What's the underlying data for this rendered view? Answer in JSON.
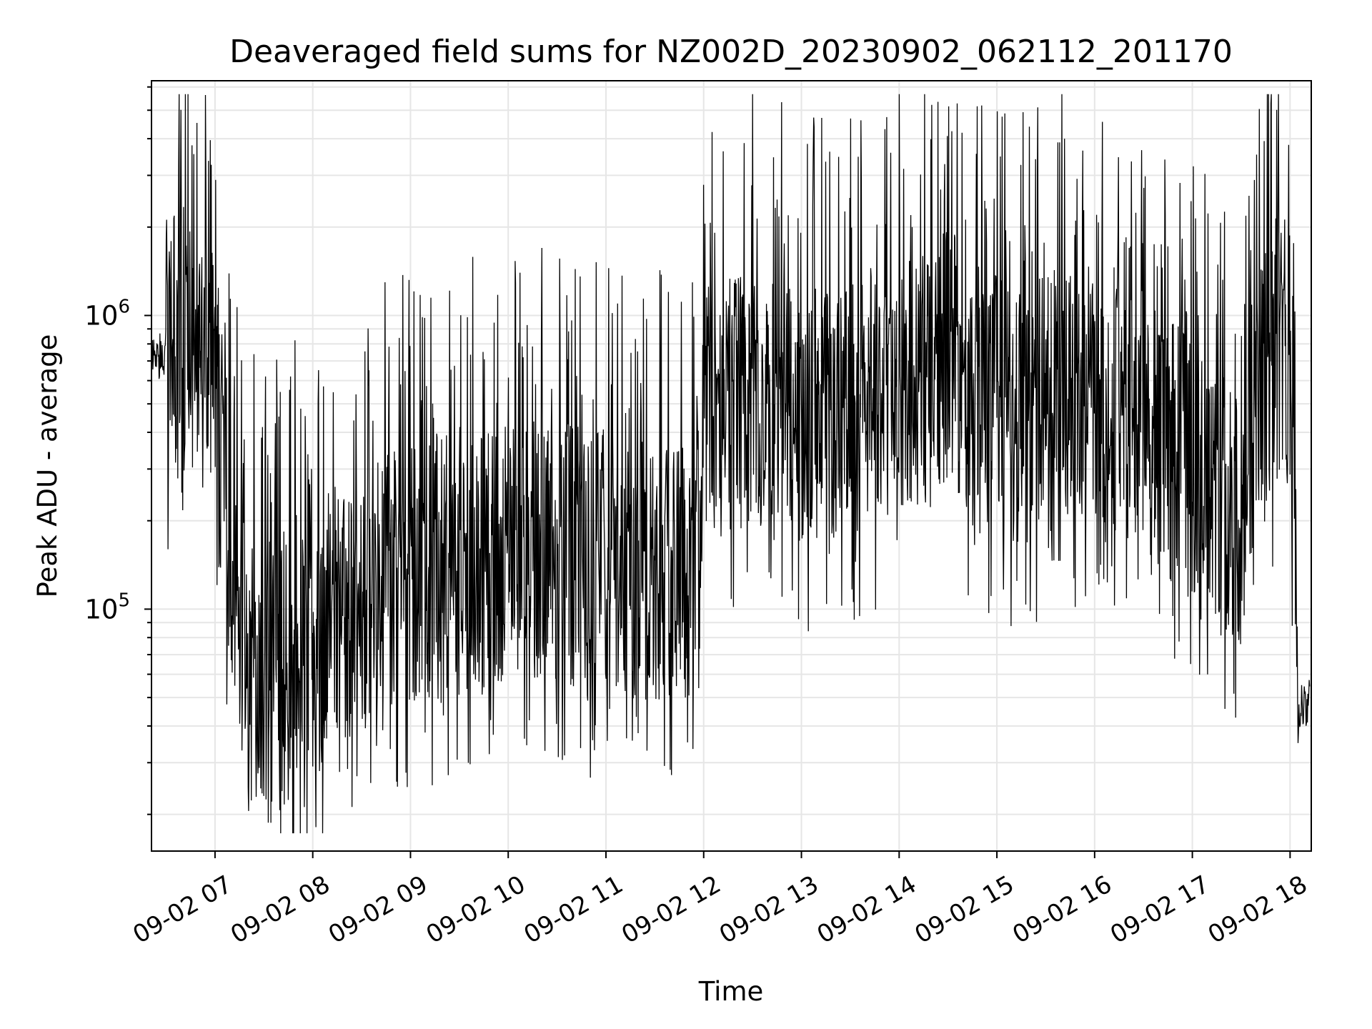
{
  "chart_data": {
    "type": "line",
    "title": "Deaveraged field sums for NZ002D_20230902_062112_201170",
    "xlabel": "Time",
    "ylabel": "Peak ADU - average",
    "yscale": "log",
    "xlim": [
      "2023-09-02 06:21",
      "2023-09-02 18:13"
    ],
    "ylim": [
      15000,
      6300000
    ],
    "grid": true,
    "line_color": "#000000",
    "x_ticks": [
      "09-02 07",
      "09-02 08",
      "09-02 09",
      "09-02 10",
      "09-02 11",
      "09-02 12",
      "09-02 13",
      "09-02 14",
      "09-02 15",
      "09-02 16",
      "09-02 17",
      "09-02 18"
    ],
    "y_ticks": [
      {
        "base": "10",
        "exp": "5",
        "value": 100000
      },
      {
        "base": "10",
        "exp": "6",
        "value": 1000000
      }
    ],
    "series": [
      {
        "values_description": "dense noisy time series of Peak ADU - average vs Time",
        "x": [
          "06:21",
          "06:30",
          "06:40",
          "06:50",
          "07:00",
          "07:10",
          "07:20",
          "07:30",
          "07:40",
          "07:50",
          "08:00",
          "08:10",
          "08:20",
          "08:30",
          "08:40",
          "08:50",
          "09:00",
          "09:15",
          "09:30",
          "09:45",
          "10:00",
          "10:15",
          "10:30",
          "10:45",
          "11:00",
          "11:15",
          "11:30",
          "11:45",
          "11:52",
          "12:00",
          "12:15",
          "12:30",
          "12:45",
          "13:00",
          "13:15",
          "13:30",
          "13:45",
          "14:00",
          "14:15",
          "14:30",
          "14:45",
          "15:00",
          "15:15",
          "15:30",
          "15:45",
          "16:00",
          "16:15",
          "16:30",
          "16:45",
          "17:00",
          "17:15",
          "17:30",
          "17:45",
          "17:55",
          "18:00",
          "18:05",
          "18:13"
        ],
        "y": [
          700000,
          750000,
          900000,
          800000,
          600000,
          150000,
          70000,
          60000,
          70000,
          75000,
          70000,
          90000,
          100000,
          110000,
          120000,
          125000,
          130000,
          140000,
          150000,
          150000,
          160000,
          160000,
          160000,
          150000,
          150000,
          140000,
          130000,
          130000,
          120000,
          450000,
          500000,
          550000,
          500000,
          450000,
          480000,
          500000,
          550000,
          600000,
          650000,
          700000,
          600000,
          500000,
          450000,
          500000,
          550000,
          600000,
          500000,
          450000,
          350000,
          300000,
          250000,
          200000,
          700000,
          800000,
          700000,
          45000,
          50000
        ]
      }
    ]
  }
}
